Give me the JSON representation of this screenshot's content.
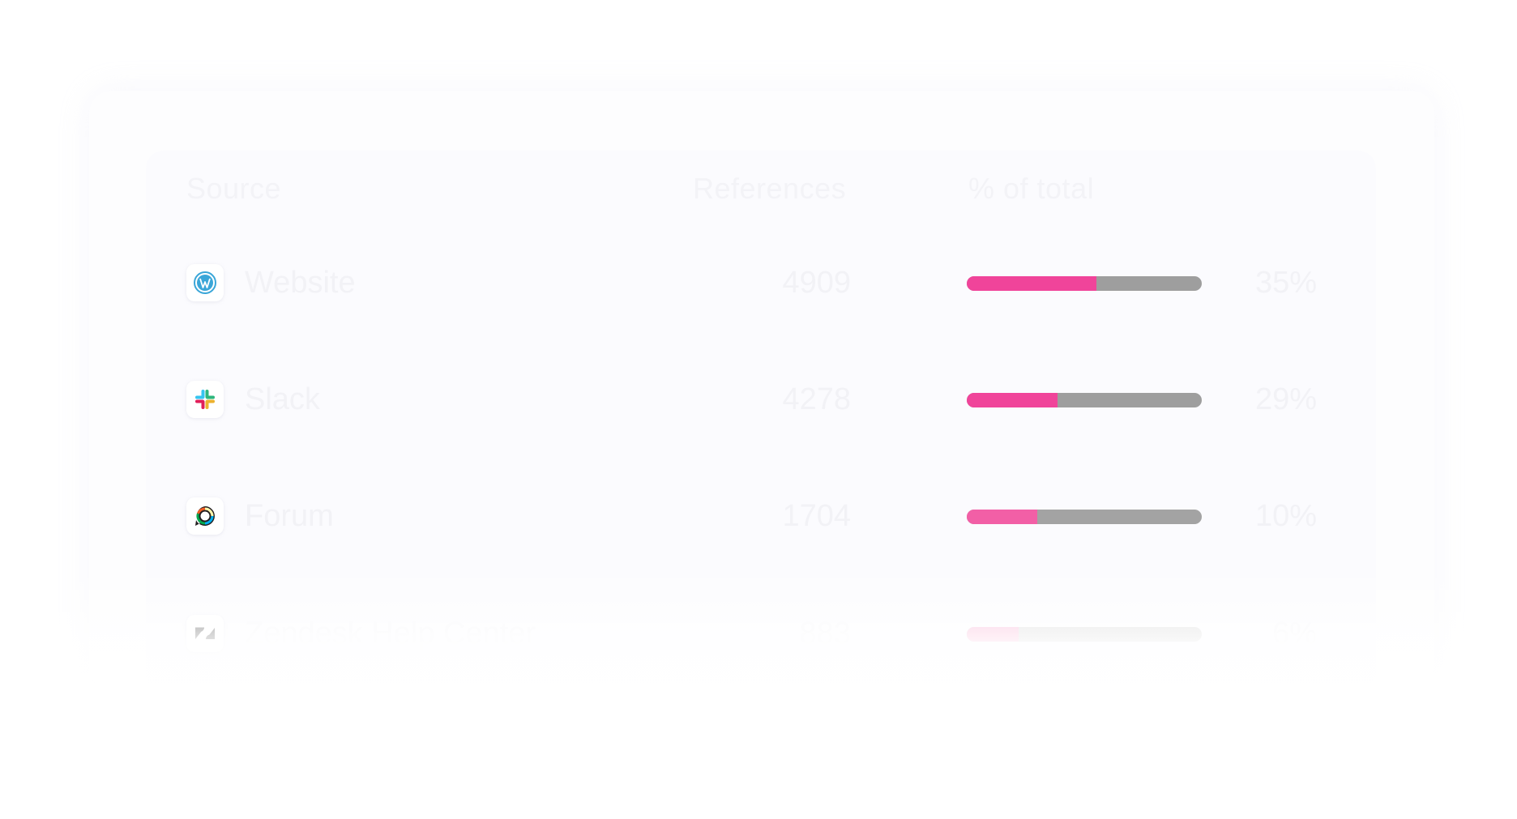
{
  "table": {
    "headers": {
      "source": "Source",
      "references": "References",
      "percent_of_total": "% of total"
    },
    "rows": [
      {
        "logo": "wordpress-icon",
        "source": "Website",
        "references": "4909",
        "percent": "35%",
        "share": 0.55
      },
      {
        "logo": "slack-icon",
        "source": "Slack",
        "references": "4278",
        "percent": "29%",
        "share": 0.385
      },
      {
        "logo": "discourse-icon",
        "source": "Forum",
        "references": "1704",
        "percent": "10%",
        "share": 0.3
      },
      {
        "logo": "zendesk-icon",
        "source": "Zendesk Help Center",
        "references": "883",
        "percent": "6%",
        "share": 0.22
      }
    ]
  },
  "colors": {
    "accent": "#f0449a",
    "track": "#9e9e9e"
  }
}
